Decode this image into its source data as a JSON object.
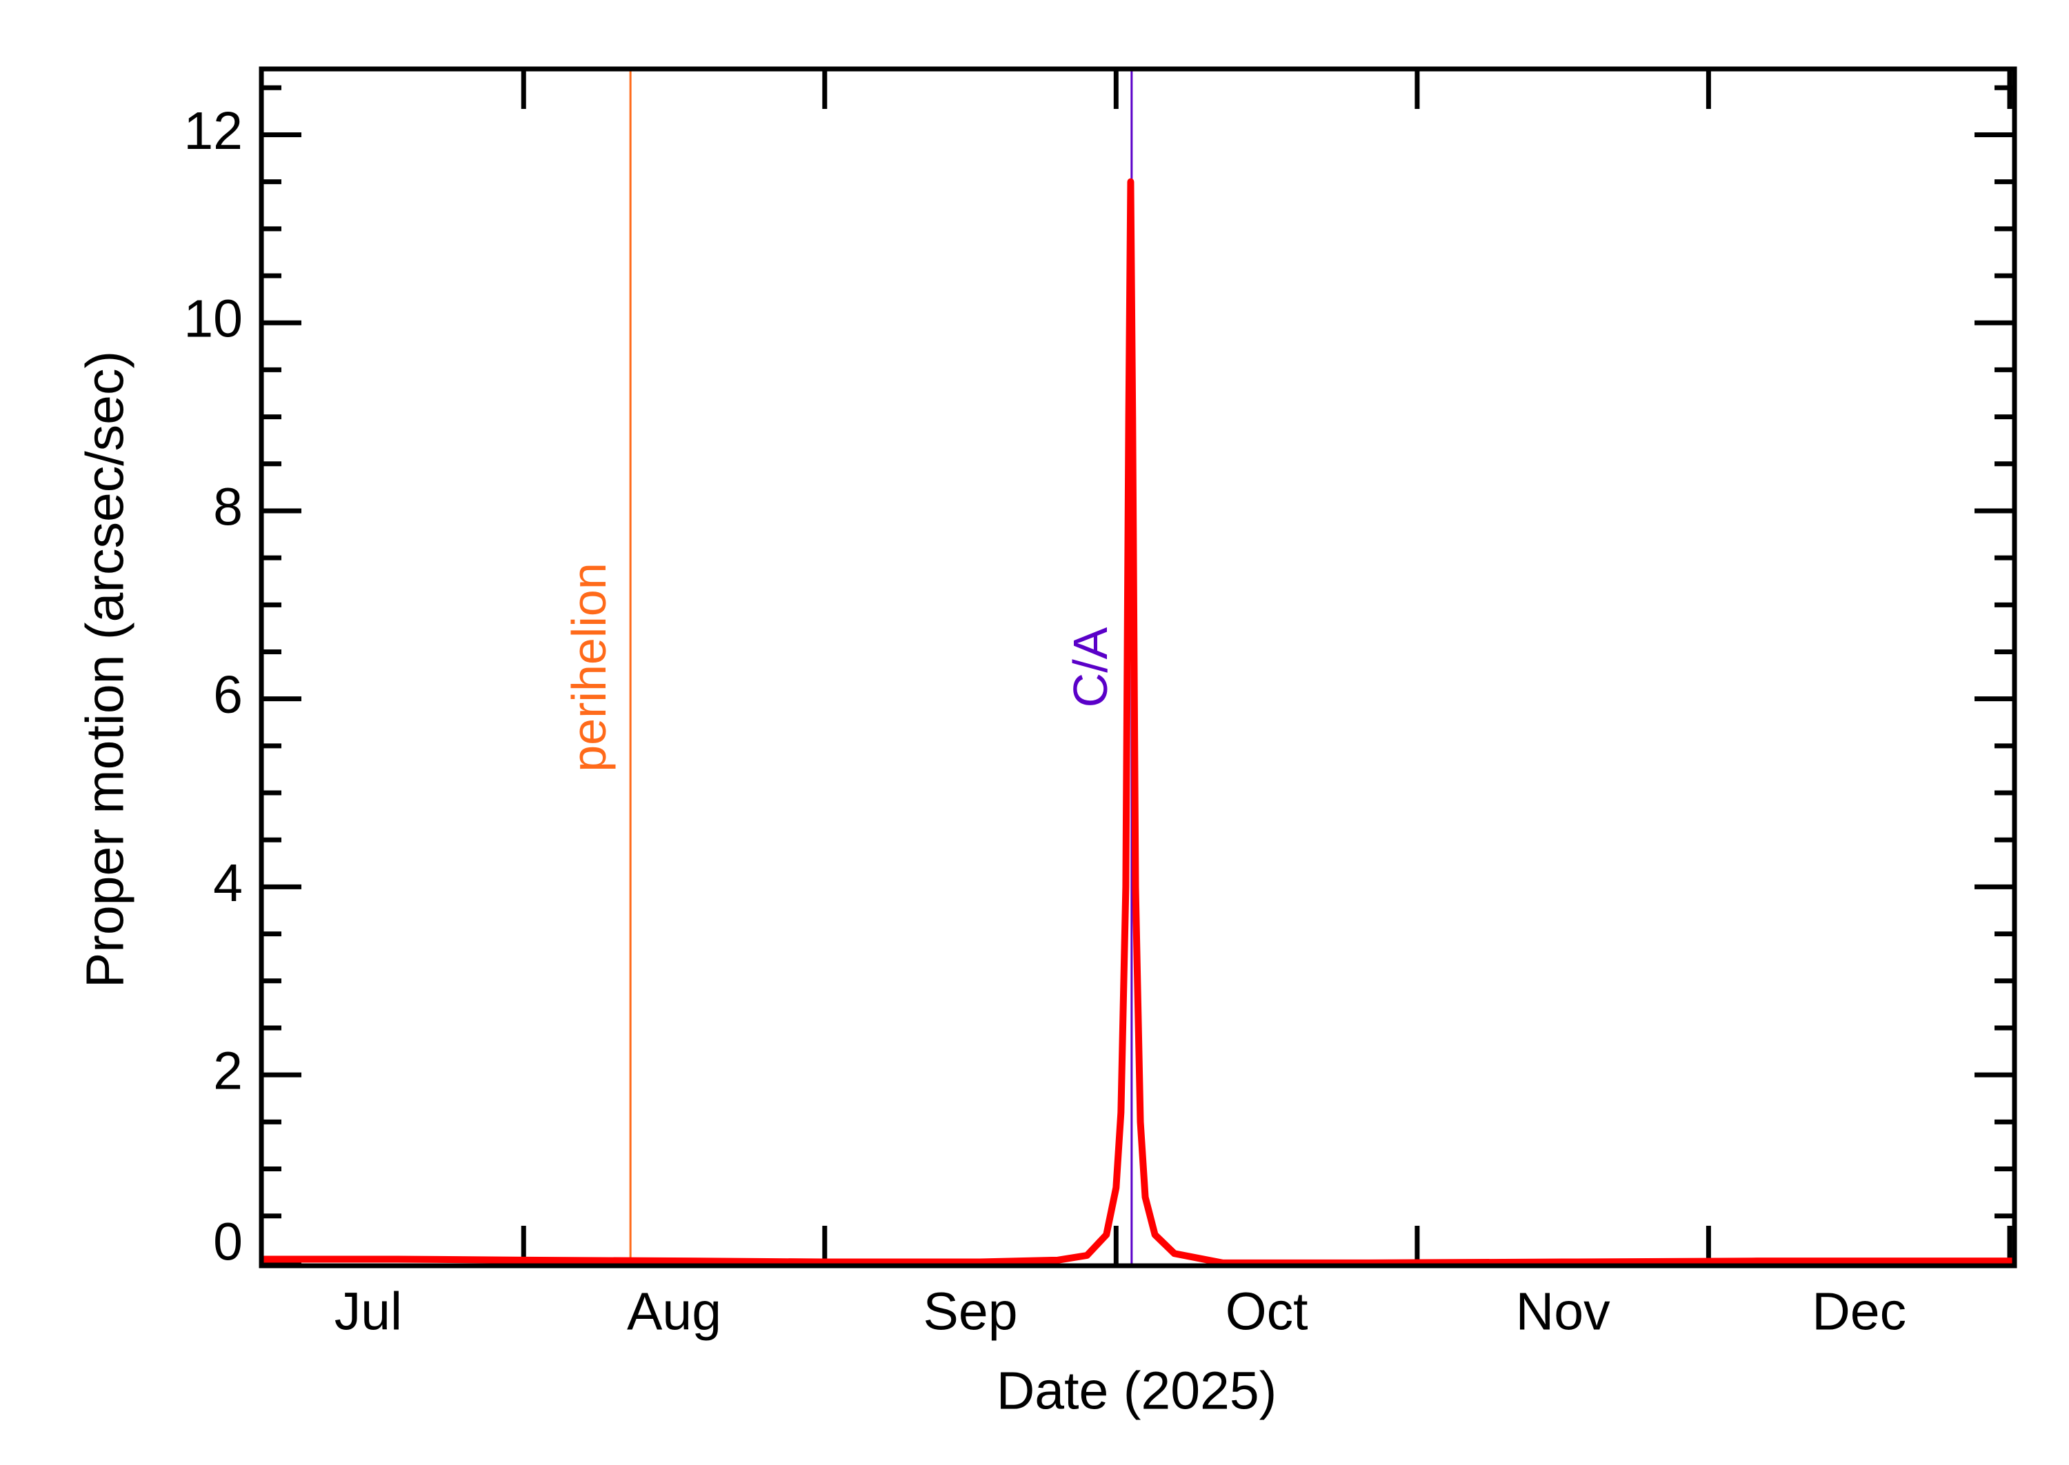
{
  "chart_data": {
    "type": "line",
    "xlabel": "Date (2025)",
    "ylabel": "Proper motion (arcsec/sec)",
    "xlim": [
      186,
      366.5
    ],
    "xticks": [
      213,
      244,
      274,
      305,
      335,
      366
    ],
    "xtick_labels": [
      {
        "value": 197,
        "label": "Jul"
      },
      {
        "value": 228.5,
        "label": "Aug"
      },
      {
        "value": 259,
        "label": "Sep"
      },
      {
        "value": 289.5,
        "label": "Oct"
      },
      {
        "value": 320,
        "label": "Nov"
      },
      {
        "value": 350.5,
        "label": "Dec"
      }
    ],
    "ylim": [
      -0.03,
      12.7
    ],
    "yticks": [
      0,
      2,
      4,
      6,
      8,
      10,
      12
    ],
    "yminorticks": [
      0.5,
      1,
      1.5,
      2.5,
      3,
      3.5,
      4.5,
      5,
      5.5,
      6.5,
      7,
      7.5,
      8.5,
      9,
      9.5,
      10.5,
      11,
      11.5,
      12.5
    ],
    "x": [
      186,
      200,
      213,
      230,
      244,
      260,
      268,
      271,
      273,
      274,
      274.5,
      275,
      275.3,
      275.5,
      275.7,
      276,
      276.5,
      277,
      278,
      280,
      285,
      300,
      320,
      340,
      366.5
    ],
    "values": [
      0.04,
      0.04,
      0.03,
      0.02,
      0.01,
      0.01,
      0.03,
      0.08,
      0.3,
      0.8,
      1.6,
      4,
      9,
      11.5,
      9,
      4,
      1.5,
      0.7,
      0.3,
      0.1,
      0.0,
      0.0,
      0.01,
      0.02,
      0.02
    ],
    "color": "#ff0000",
    "vlines": [
      {
        "x": 224,
        "label": "perihelion",
        "color": "#ff6a1a"
      },
      {
        "x": 275.6,
        "label": "C/A",
        "color": "#5a00c8"
      }
    ]
  }
}
